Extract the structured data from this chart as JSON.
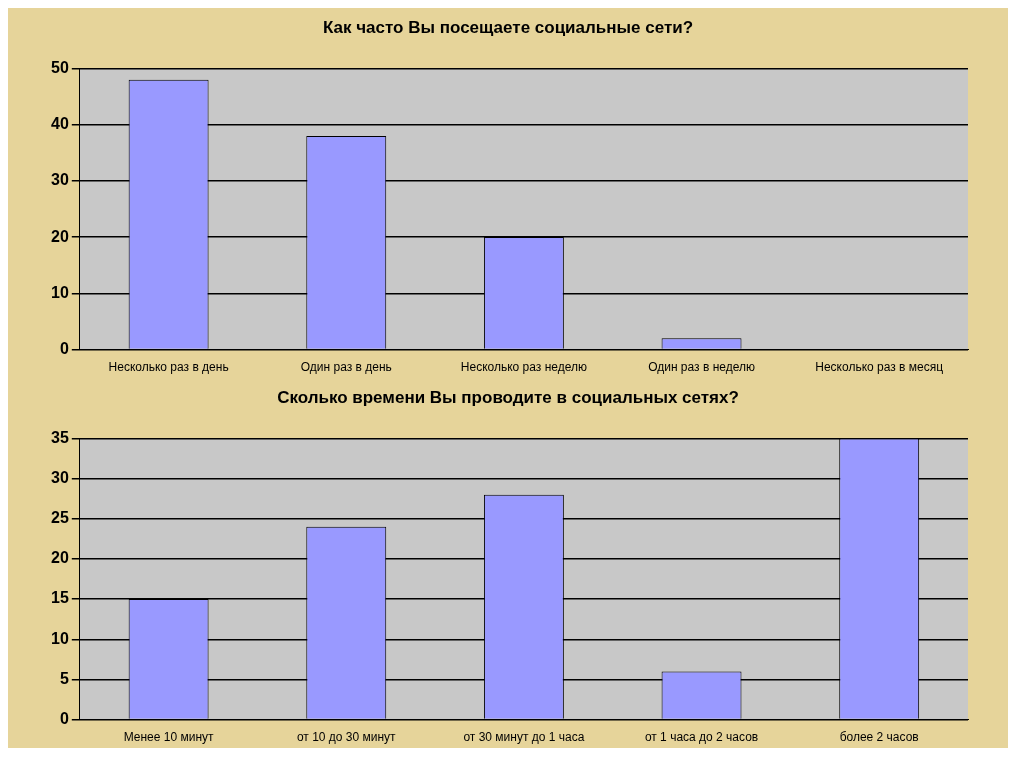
{
  "chart_data": [
    {
      "type": "bar",
      "title": "Как часто Вы посещаете социальные сети?",
      "categories": [
        "Несколько раз в день",
        "Один раз в день",
        "Несколько раз неделю",
        "Один раз в неделю",
        "Несколько раз в месяц"
      ],
      "values": [
        48,
        38,
        20,
        2,
        0
      ],
      "color": "#9999ff",
      "ylim": [
        0,
        50
      ],
      "yticks": [
        0,
        10,
        20,
        30,
        40,
        50
      ],
      "grid": "y"
    },
    {
      "type": "bar",
      "title": "Сколько времени Вы проводите в социальных сетях?",
      "categories": [
        "Менее 10 минут",
        "от 10 до 30 минут",
        "от 30 минут до 1 часа",
        "от 1 часа до 2 часов",
        "более 2 часов"
      ],
      "values": [
        15,
        24,
        28,
        6,
        35
      ],
      "color": "#9999ff",
      "ylim": [
        0,
        35
      ],
      "yticks": [
        0,
        5,
        10,
        15,
        20,
        25,
        30,
        35
      ],
      "grid": "y"
    }
  ]
}
